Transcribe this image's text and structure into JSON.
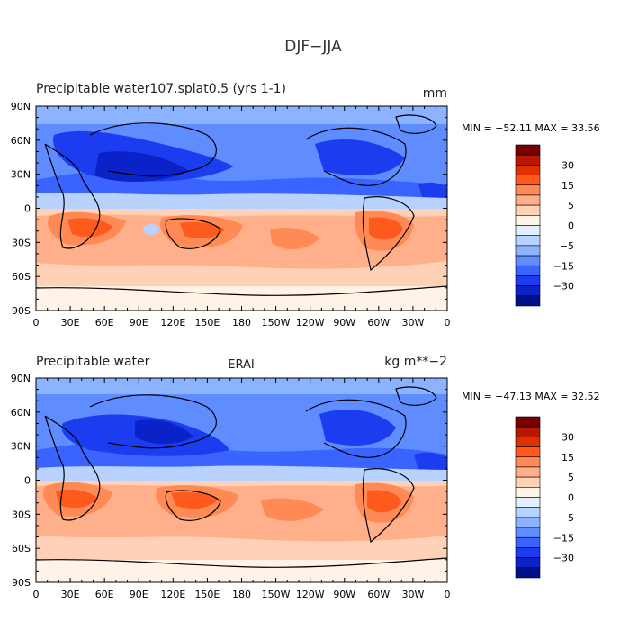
{
  "main_title": "DJF−JJA",
  "panels": [
    {
      "title_left": "Precipitable water107.splat0.5 (yrs 1-1)",
      "title_center": "",
      "title_right": "mm",
      "stats": "MIN = −52.11  MAX =  33.56"
    },
    {
      "title_left": "Precipitable water",
      "title_center": "ERAI",
      "title_right": "kg m**−2",
      "stats": "MIN = −47.13  MAX =  32.52"
    }
  ],
  "x_ticks": [
    "0",
    "30E",
    "60E",
    "90E",
    "120E",
    "150E",
    "180",
    "150W",
    "120W",
    "90W",
    "60W",
    "30W",
    "0"
  ],
  "y_ticks": [
    "90N",
    "60N",
    "30N",
    "0",
    "30S",
    "60S",
    "90S"
  ],
  "colorbar": {
    "labels": [
      "30",
      "15",
      "5",
      "0",
      "−5",
      "−15",
      "−30"
    ],
    "colors": [
      "#7a0000",
      "#b81800",
      "#e23000",
      "#ff5a1e",
      "#ff8a55",
      "#ffb08a",
      "#ffd2b8",
      "#fff2e6",
      "#e2efff",
      "#b7d2ff",
      "#8cb3ff",
      "#5f8dff",
      "#3a63ff",
      "#1c3cf0",
      "#0b22c8",
      "#00108a"
    ]
  },
  "colors": {
    "strong_negative": "#1c3cf0",
    "mid_negative": "#5f8dff",
    "weak_negative": "#b7d2ff",
    "neutral": "#fff2e6",
    "weak_positive": "#ffd2b8",
    "mid_positive": "#ff8a55",
    "strong_positive": "#e23000"
  }
}
